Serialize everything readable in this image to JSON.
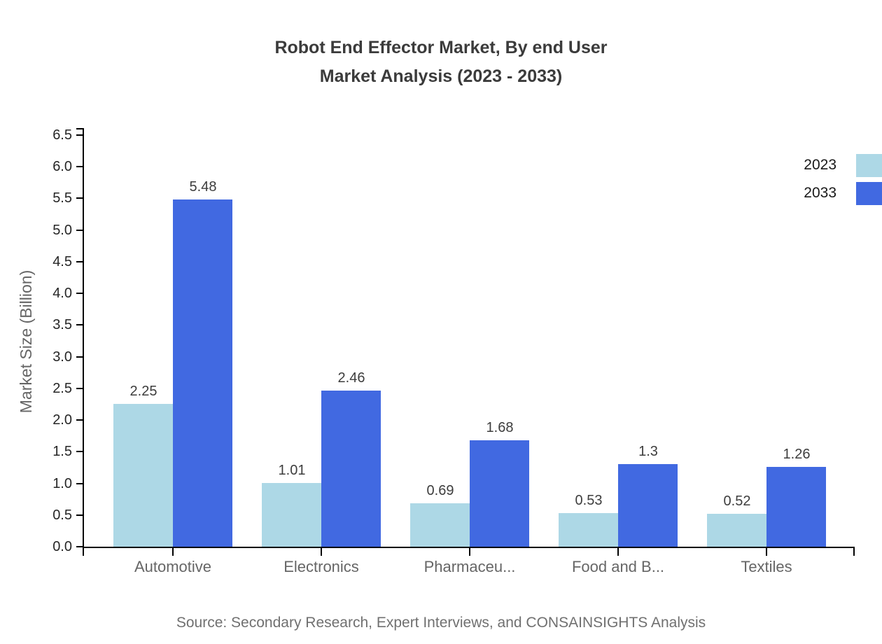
{
  "chart_data": {
    "type": "bar",
    "title_lines": [
      "Robot End Effector Market, By end User",
      "Market Analysis (2023 - 2033)"
    ],
    "categories": [
      "Automotive",
      "Electronics",
      "Pharmaceu...",
      "Food and B...",
      "Textiles"
    ],
    "series": [
      {
        "name": "2023",
        "color": "#ADD8E6",
        "values": [
          2.25,
          1.01,
          0.69,
          0.53,
          0.52
        ]
      },
      {
        "name": "2033",
        "color": "#4169E1",
        "values": [
          5.48,
          2.46,
          1.68,
          1.3,
          1.26
        ]
      }
    ],
    "ylabel": "Market Size (Billion)",
    "ytick_labels": [
      "0.0",
      "0.5",
      "1.0",
      "1.5",
      "2.0",
      "2.5",
      "3.0",
      "3.5",
      "4.0",
      "4.5",
      "5.0",
      "5.5",
      "6.0",
      "6.5"
    ],
    "ytick_step": 0.5,
    "ylim": [
      0,
      6.5
    ],
    "grid": false,
    "legend_position": "right",
    "source": "Source: Secondary Research, Expert Interviews, and CONSAINSIGHTS Analysis"
  },
  "colors": {
    "axis": "#000000",
    "tick_label": "#262626",
    "category_label": "#666666",
    "axis_title": "#666666",
    "value_label": "#3d3d3d",
    "legend_label": "#1a1a1a",
    "title": "#3b3b3b",
    "source": "#707070"
  }
}
